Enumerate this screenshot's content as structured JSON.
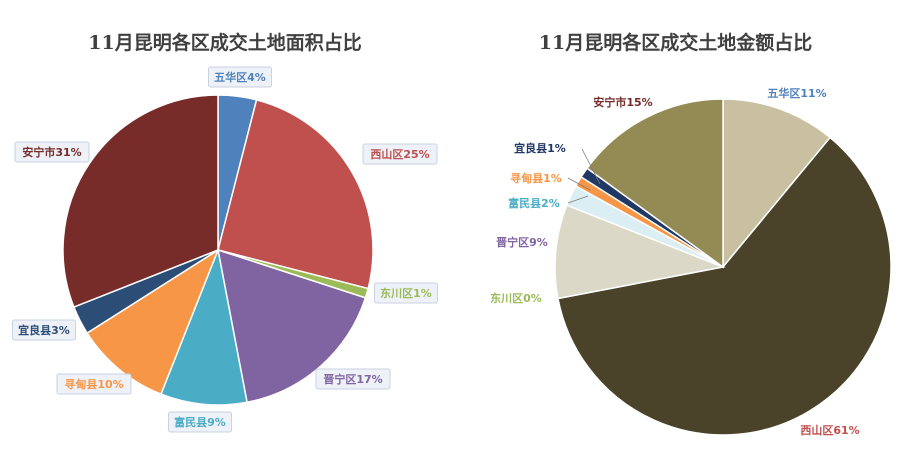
{
  "chart_data": [
    {
      "type": "pie",
      "title": "11月昆明各区成交土地面积占比",
      "categories": [
        "五华区",
        "西山区",
        "东川区",
        "晋宁区",
        "富民县",
        "寻甸县",
        "宜良县",
        "安宁市"
      ],
      "values": [
        4,
        25,
        1,
        17,
        9,
        10,
        3,
        31
      ],
      "labels": [
        "五华区4%",
        "西山区25%",
        "东川区1%",
        "晋宁区17%",
        "富民县9%",
        "寻甸县10%",
        "宜良县3%",
        "安宁市31%"
      ],
      "colors": [
        "#4f81bd",
        "#c0504d",
        "#9bbb59",
        "#8064a2",
        "#4bacc6",
        "#f79646",
        "#2c4d75",
        "#772c2a"
      ],
      "label_colors": [
        "#4f81bd",
        "#c0504d",
        "#9bbb59",
        "#8064a2",
        "#4bacc6",
        "#f79646",
        "#2c4d75",
        "#772c2a"
      ],
      "label_style": "callout"
    },
    {
      "type": "pie",
      "title": "11月昆明各区成交土地金额占比",
      "categories": [
        "五华区",
        "西山区",
        "东川区",
        "晋宁区",
        "富民县",
        "寻甸县",
        "宜良县",
        "安宁市"
      ],
      "values": [
        11,
        61,
        0,
        9,
        2,
        1,
        1,
        15
      ],
      "labels": [
        "五华区11%",
        "西山区61%",
        "东川区0%",
        "晋宁区9%",
        "富民县2%",
        "寻甸县1%",
        "宜良县1%",
        "安宁市15%"
      ],
      "colors": [
        "#c8c0a0",
        "#4a432a",
        "#9bbb59",
        "#dcd8c8",
        "#daeef3",
        "#f79646",
        "#1f3864",
        "#948a54"
      ],
      "label_colors": [
        "#4f81bd",
        "#c0504d",
        "#9bbb59",
        "#8064a2",
        "#4bacc6",
        "#f79646",
        "#1f3864",
        "#772c2a"
      ],
      "label_style": "plain"
    }
  ]
}
